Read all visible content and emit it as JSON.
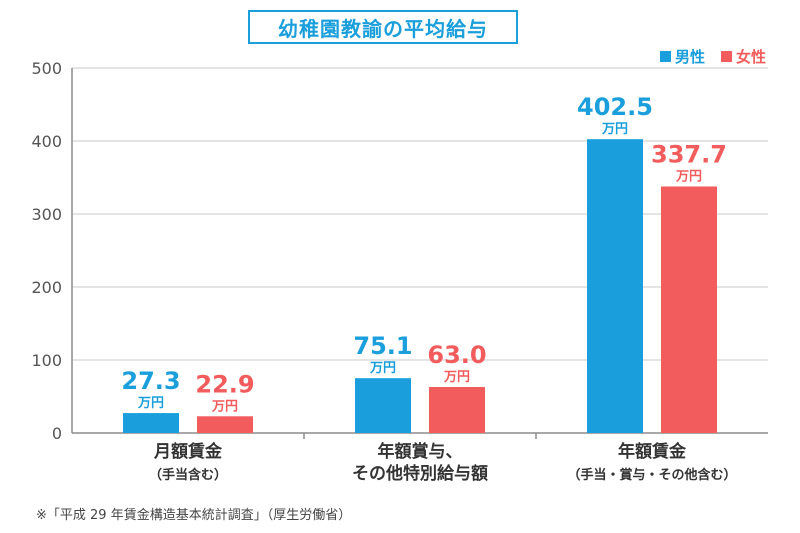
{
  "colors": {
    "male": "#1a9fdc",
    "female": "#f25c5c",
    "axis": "#8c8c8c",
    "grid": "#c8c8c8",
    "label": "#555555"
  },
  "legend": [
    {
      "key": "male",
      "label": "男性"
    },
    {
      "key": "female",
      "label": "女性"
    }
  ],
  "footnote": "※「平成 29 年賃金構造基本統計調査」（厚生労働省）",
  "chart_data": {
    "type": "bar",
    "title": "幼稚園教諭の平均給与",
    "categories": [
      "月額賃金",
      "年額賞与、\nその他特別給与額",
      "年額賃金"
    ],
    "category_sublabels": [
      "（手当含む）",
      "",
      "（手当・賞与・その他含む）"
    ],
    "series": [
      {
        "name": "男性",
        "values": [
          27.3,
          75.1,
          402.5
        ],
        "value_labels": [
          "27.3",
          "75.1",
          "402.5"
        ]
      },
      {
        "name": "女性",
        "values": [
          22.9,
          63.0,
          337.7
        ],
        "value_labels": [
          "22.9",
          "63.0",
          "337.7"
        ]
      }
    ],
    "unit": "万円",
    "yticks": [
      0,
      100,
      200,
      300,
      400,
      500
    ],
    "ylim": [
      0,
      500
    ],
    "grid": true
  }
}
